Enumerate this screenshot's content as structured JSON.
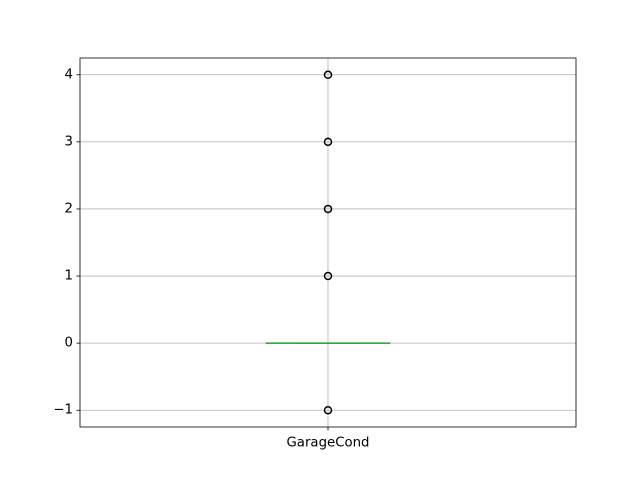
{
  "chart_data": {
    "type": "box",
    "title": "",
    "xlabel": "",
    "ylabel": "",
    "categories": [
      "GarageCond"
    ],
    "ylim": [
      -1.25,
      4.25
    ],
    "yticks": [
      -1,
      0,
      1,
      2,
      3,
      4
    ],
    "ytick_labels": [
      "−1",
      "0",
      "1",
      "2",
      "3",
      "4"
    ],
    "grid": true,
    "series": [
      {
        "category": "GarageCond",
        "whislo": 0,
        "q1": 0,
        "med": 0,
        "q3": 0,
        "whishi": 0,
        "fliers": [
          -1,
          1,
          2,
          3,
          4
        ]
      }
    ],
    "colors": {
      "median": "#2ca02c",
      "box": "#1f77b4",
      "grid": "#b0b0b0",
      "flier": "#000000",
      "axes": "#000000"
    }
  }
}
